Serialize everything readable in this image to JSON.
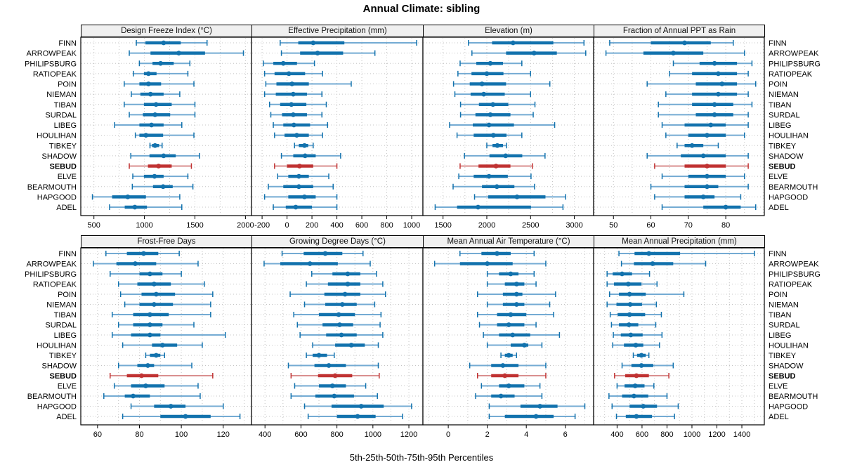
{
  "title": "Annual Climate: sibling",
  "xlabel": "5th-25th-50th-75th-95th Percentiles",
  "percentile_labels": [
    "5th",
    "25th",
    "50th",
    "75th",
    "95th"
  ],
  "highlight_station": "SEBUD",
  "stations": [
    "FINN",
    "ARROWPEAK",
    "PHILIPSBURG",
    "RATIOPEAK",
    "POIN",
    "NIEMAN",
    "TIBAN",
    "SURDAL",
    "LIBEG",
    "HOULIHAN",
    "TIBKEY",
    "SHADOW",
    "SEBUD",
    "ELVE",
    "BEARMOUTH",
    "HAPGOOD",
    "ADEL"
  ],
  "colors": {
    "blue": "#1272ad",
    "blue_range": "#74abd3",
    "red": "#c03232",
    "red_range": "#d98f8f",
    "grid": "#c4c4c4",
    "strip_bg": "#f0f0f0",
    "axis": "#000000"
  },
  "chart_data": [
    {
      "type": "dotplot",
      "title": "Design Freeze Index (°C)",
      "xlim": [
        370,
        2060
      ],
      "ticks": [
        500,
        1000,
        1500,
        2000
      ],
      "grid_step": 250,
      "values": [
        [
          920,
          1010,
          1190,
          1360,
          1620
        ],
        [
          850,
          1060,
          1340,
          1600,
          1980
        ],
        [
          950,
          1080,
          1160,
          1290,
          1450
        ],
        [
          890,
          995,
          1040,
          1120,
          1430
        ],
        [
          800,
          950,
          1040,
          1165,
          1490
        ],
        [
          870,
          960,
          1060,
          1190,
          1350
        ],
        [
          800,
          995,
          1115,
          1270,
          1500
        ],
        [
          850,
          985,
          1105,
          1255,
          1500
        ],
        [
          705,
          950,
          1070,
          1190,
          1370
        ],
        [
          910,
          950,
          1015,
          1185,
          1490
        ],
        [
          1055,
          1075,
          1105,
          1145,
          1175
        ],
        [
          865,
          1050,
          1190,
          1310,
          1545
        ],
        [
          850,
          1035,
          1140,
          1270,
          1465
        ],
        [
          885,
          995,
          1100,
          1190,
          1430
        ],
        [
          880,
          1085,
          1185,
          1280,
          1480
        ],
        [
          485,
          680,
          835,
          1015,
          1350
        ],
        [
          655,
          805,
          905,
          1025,
          1370
        ]
      ]
    },
    {
      "type": "dotplot",
      "title": "Effective Precipitation (mm)",
      "xlim": [
        -285,
        1090
      ],
      "ticks": [
        -200,
        0,
        200,
        400,
        600,
        800,
        1000
      ],
      "grid_step": 200,
      "values": [
        [
          -55,
          90,
          210,
          460,
          1040
        ],
        [
          -45,
          105,
          245,
          450,
          705
        ],
        [
          -190,
          -110,
          -30,
          80,
          220
        ],
        [
          -180,
          -100,
          15,
          145,
          285
        ],
        [
          -170,
          -85,
          40,
          175,
          515
        ],
        [
          -180,
          -90,
          50,
          160,
          280
        ],
        [
          -140,
          -55,
          35,
          155,
          315
        ],
        [
          -130,
          -40,
          50,
          160,
          280
        ],
        [
          -110,
          -30,
          55,
          185,
          325
        ],
        [
          -100,
          -20,
          78,
          175,
          285
        ],
        [
          60,
          95,
          140,
          170,
          210
        ],
        [
          -45,
          50,
          145,
          230,
          430
        ],
        [
          -100,
          0,
          100,
          210,
          400
        ],
        [
          -75,
          10,
          95,
          175,
          335
        ],
        [
          -150,
          -30,
          95,
          210,
          370
        ],
        [
          -180,
          10,
          140,
          230,
          400
        ],
        [
          -110,
          -10,
          70,
          200,
          400
        ]
      ]
    },
    {
      "type": "dotplot",
      "title": "Elevation (m)",
      "xlim": [
        1270,
        3220
      ],
      "ticks": [
        1500,
        2000,
        2500,
        3000
      ],
      "grid_step": 250,
      "values": [
        [
          1790,
          2060,
          2300,
          2760,
          3110
        ],
        [
          1830,
          2220,
          2540,
          2800,
          3130
        ],
        [
          1695,
          1880,
          2040,
          2185,
          2400
        ],
        [
          1670,
          1825,
          2000,
          2190,
          2500
        ],
        [
          1620,
          1805,
          1945,
          2220,
          2720
        ],
        [
          1635,
          1815,
          1965,
          2205,
          2500
        ],
        [
          1700,
          1910,
          2070,
          2245,
          2550
        ],
        [
          1700,
          1870,
          2040,
          2270,
          2530
        ],
        [
          1575,
          1840,
          2025,
          2310,
          2775
        ],
        [
          1660,
          1850,
          2075,
          2225,
          2400
        ],
        [
          2000,
          2065,
          2120,
          2185,
          2225
        ],
        [
          1745,
          2030,
          2215,
          2405,
          2665
        ],
        [
          1695,
          1905,
          2105,
          2270,
          2520
        ],
        [
          1680,
          1850,
          2025,
          2240,
          2505
        ],
        [
          1615,
          1945,
          2115,
          2315,
          2545
        ],
        [
          1860,
          2015,
          2345,
          2670,
          2900
        ],
        [
          1410,
          1660,
          1900,
          2505,
          2870
        ]
      ]
    },
    {
      "type": "dotplot",
      "title": "Fraction of Annual PPT as Rain",
      "xlim": [
        44.7,
        90.3
      ],
      "ticks": [
        50,
        60,
        70,
        80
      ],
      "grid_step": 5,
      "values": [
        [
          49,
          60,
          69,
          76,
          82
        ],
        [
          48,
          58,
          66,
          74,
          85
        ],
        [
          66,
          73,
          77,
          83,
          87
        ],
        [
          65,
          71,
          78,
          83,
          86
        ],
        [
          59,
          72,
          79,
          83,
          88
        ],
        [
          64,
          71,
          78,
          83,
          86
        ],
        [
          62,
          71,
          77,
          82,
          87
        ],
        [
          62,
          72,
          77,
          82,
          86
        ],
        [
          63,
          69,
          76,
          80,
          86
        ],
        [
          64,
          70,
          75,
          80,
          85
        ],
        [
          67,
          69,
          71,
          74,
          78
        ],
        [
          59,
          68,
          74,
          80,
          86
        ],
        [
          61,
          69,
          75,
          80,
          86
        ],
        [
          63,
          70,
          75,
          80,
          85
        ],
        [
          60,
          69,
          75,
          78,
          86
        ],
        [
          61,
          69,
          74,
          77,
          84
        ],
        [
          63,
          74,
          80,
          84,
          88
        ]
      ]
    },
    {
      "type": "dotplot",
      "title": "Frost-Free Days",
      "xlim": [
        52,
        133.5
      ],
      "ticks": [
        60,
        80,
        100,
        120
      ],
      "grid_step": 10,
      "values": [
        [
          64,
          74,
          82,
          89,
          99
        ],
        [
          58,
          69,
          78,
          88,
          108
        ],
        [
          66,
          80,
          85,
          91,
          100
        ],
        [
          70,
          79,
          87,
          95,
          111
        ],
        [
          71,
          81,
          88,
          97,
          115
        ],
        [
          73,
          80,
          87,
          96,
          114
        ],
        [
          67,
          77,
          85,
          94,
          114
        ],
        [
          70,
          77,
          85,
          91,
          106
        ],
        [
          67,
          76,
          85,
          90,
          121
        ],
        [
          72,
          86,
          91,
          98,
          110
        ],
        [
          83,
          85,
          88,
          90,
          92
        ],
        [
          70,
          79,
          84,
          87,
          105
        ],
        [
          66,
          74,
          81,
          89,
          115
        ],
        [
          68,
          76,
          83,
          92,
          108
        ],
        [
          63,
          73,
          77,
          85,
          109
        ],
        [
          76,
          87,
          95,
          102,
          120
        ],
        [
          72,
          90,
          102,
          114,
          128
        ]
      ]
    },
    {
      "type": "dotplot",
      "title": "Growing Degree Days (°C)",
      "xlim": [
        325,
        1278
      ],
      "ticks": [
        400,
        600,
        800,
        1000,
        1200
      ],
      "grid_step": 100,
      "values": [
        [
          495,
          615,
          735,
          830,
          945
        ],
        [
          395,
          485,
          650,
          805,
          985
        ],
        [
          660,
          775,
          860,
          930,
          1020
        ],
        [
          630,
          750,
          860,
          930,
          1055
        ],
        [
          540,
          730,
          845,
          930,
          1070
        ],
        [
          620,
          735,
          830,
          910,
          1010
        ],
        [
          560,
          700,
          810,
          900,
          1045
        ],
        [
          580,
          720,
          815,
          890,
          1040
        ],
        [
          595,
          740,
          825,
          910,
          1055
        ],
        [
          665,
          790,
          880,
          955,
          1030
        ],
        [
          630,
          665,
          700,
          745,
          785
        ],
        [
          530,
          675,
          755,
          850,
          1030
        ],
        [
          545,
          695,
          790,
          885,
          1035
        ],
        [
          565,
          700,
          775,
          850,
          960
        ],
        [
          545,
          680,
          785,
          895,
          1025
        ],
        [
          620,
          770,
          935,
          1060,
          1215
        ],
        [
          640,
          800,
          915,
          1015,
          1165
        ]
      ]
    },
    {
      "type": "dotplot",
      "title": "Mean Annual Air Temperature (°C)",
      "xlim": [
        -1.3,
        7.45
      ],
      "ticks": [
        0,
        2,
        4,
        6
      ],
      "grid_step": 1,
      "values": [
        [
          0.6,
          1.7,
          2.5,
          3.2,
          4.4
        ],
        [
          -0.7,
          0.6,
          2.0,
          3.3,
          5.0
        ],
        [
          2.0,
          2.6,
          3.2,
          3.6,
          4.4
        ],
        [
          2.0,
          2.9,
          3.5,
          3.9,
          4.5
        ],
        [
          1.5,
          2.8,
          3.5,
          3.8,
          5.5
        ],
        [
          2.0,
          2.8,
          3.5,
          3.9,
          5.2
        ],
        [
          1.5,
          2.5,
          3.2,
          4.0,
          5.4
        ],
        [
          1.6,
          2.5,
          3.1,
          3.9,
          4.5
        ],
        [
          1.8,
          2.6,
          3.3,
          4.2,
          5.7
        ],
        [
          2.0,
          3.2,
          3.9,
          4.1,
          4.8
        ],
        [
          2.7,
          2.9,
          3.1,
          3.3,
          3.5
        ],
        [
          1.1,
          2.2,
          2.8,
          3.6,
          5.0
        ],
        [
          1.5,
          2.2,
          2.9,
          3.6,
          5.0
        ],
        [
          1.7,
          2.6,
          3.1,
          3.9,
          4.7
        ],
        [
          1.4,
          2.2,
          2.7,
          3.4,
          4.8
        ],
        [
          2.1,
          3.7,
          4.7,
          5.6,
          7.0
        ],
        [
          2.1,
          2.9,
          4.5,
          5.4,
          6.5
        ]
      ]
    },
    {
      "type": "dotplot",
      "title": "Mean Annual Precipitation (mm)",
      "xlim": [
        212,
        1580
      ],
      "ticks": [
        400,
        600,
        800,
        1000,
        1200,
        1400
      ],
      "grid_step": 100,
      "values": [
        [
          415,
          540,
          655,
          905,
          1500
        ],
        [
          435,
          535,
          685,
          850,
          1110
        ],
        [
          320,
          365,
          440,
          520,
          660
        ],
        [
          320,
          375,
          490,
          595,
          720
        ],
        [
          340,
          415,
          500,
          630,
          935
        ],
        [
          320,
          395,
          505,
          600,
          715
        ],
        [
          345,
          405,
          500,
          625,
          755
        ],
        [
          355,
          415,
          495,
          570,
          710
        ],
        [
          370,
          430,
          510,
          605,
          760
        ],
        [
          365,
          455,
          550,
          610,
          740
        ],
        [
          530,
          560,
          595,
          630,
          655
        ],
        [
          440,
          515,
          595,
          690,
          850
        ],
        [
          380,
          465,
          555,
          655,
          815
        ],
        [
          400,
          460,
          545,
          620,
          695
        ],
        [
          335,
          440,
          535,
          650,
          800
        ],
        [
          360,
          500,
          610,
          720,
          890
        ],
        [
          395,
          470,
          555,
          680,
          860
        ]
      ]
    }
  ]
}
